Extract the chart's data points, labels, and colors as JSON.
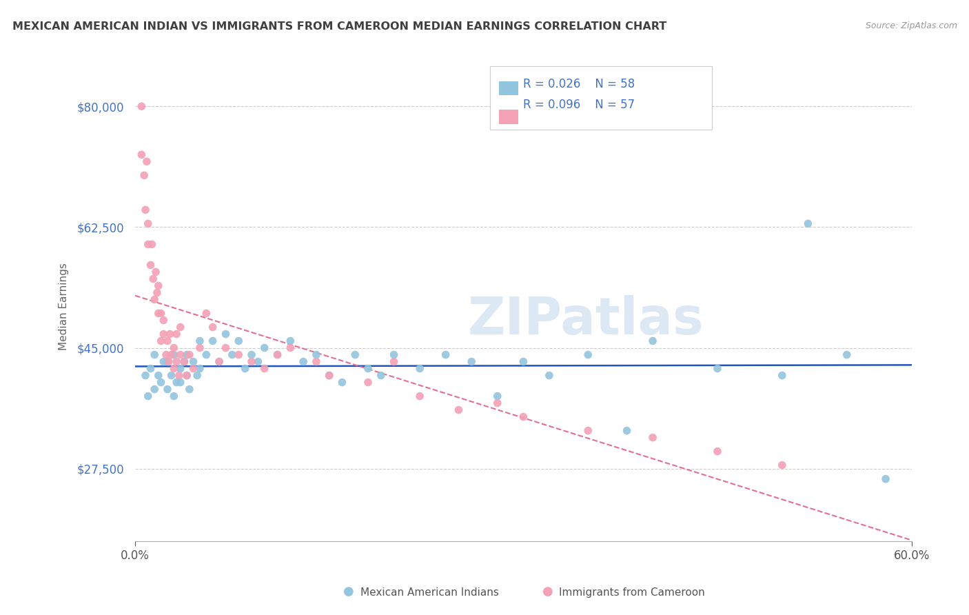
{
  "title": "MEXICAN AMERICAN INDIAN VS IMMIGRANTS FROM CAMEROON MEDIAN EARNINGS CORRELATION CHART",
  "source": "Source: ZipAtlas.com",
  "ylabel": "Median Earnings",
  "xlim": [
    0.0,
    0.6
  ],
  "ylim": [
    17000,
    85000
  ],
  "yticks": [
    27500,
    45000,
    62500,
    80000
  ],
  "ytick_labels": [
    "$27,500",
    "$45,000",
    "$62,500",
    "$80,000"
  ],
  "xtick_labels": [
    "0.0%",
    "60.0%"
  ],
  "legend_blue_r": "R = 0.026",
  "legend_blue_n": "N = 58",
  "legend_pink_r": "R = 0.096",
  "legend_pink_n": "N = 57",
  "legend_label_blue": "Mexican American Indians",
  "legend_label_pink": "Immigrants from Cameroon",
  "blue_color": "#92c5de",
  "pink_color": "#f4a0b5",
  "title_color": "#404040",
  "axis_label_color": "#4472c4",
  "watermark": "ZIPatlas",
  "blue_scatter_x": [
    0.008,
    0.01,
    0.012,
    0.015,
    0.015,
    0.018,
    0.02,
    0.022,
    0.025,
    0.025,
    0.028,
    0.03,
    0.03,
    0.032,
    0.035,
    0.035,
    0.038,
    0.04,
    0.04,
    0.042,
    0.045,
    0.048,
    0.05,
    0.05,
    0.055,
    0.06,
    0.065,
    0.07,
    0.075,
    0.08,
    0.085,
    0.09,
    0.095,
    0.1,
    0.11,
    0.12,
    0.13,
    0.14,
    0.15,
    0.16,
    0.17,
    0.18,
    0.19,
    0.2,
    0.22,
    0.24,
    0.26,
    0.28,
    0.3,
    0.32,
    0.35,
    0.38,
    0.4,
    0.45,
    0.5,
    0.52,
    0.55,
    0.58
  ],
  "blue_scatter_y": [
    41000,
    38000,
    42000,
    39000,
    44000,
    41000,
    40000,
    43000,
    39000,
    43000,
    41000,
    38000,
    44000,
    40000,
    42000,
    40000,
    43000,
    41000,
    44000,
    39000,
    43000,
    41000,
    46000,
    42000,
    44000,
    46000,
    43000,
    47000,
    44000,
    46000,
    42000,
    44000,
    43000,
    45000,
    44000,
    46000,
    43000,
    44000,
    41000,
    40000,
    44000,
    42000,
    41000,
    44000,
    42000,
    44000,
    43000,
    38000,
    43000,
    41000,
    44000,
    33000,
    46000,
    42000,
    41000,
    63000,
    44000,
    26000
  ],
  "pink_scatter_x": [
    0.005,
    0.005,
    0.007,
    0.008,
    0.009,
    0.01,
    0.01,
    0.012,
    0.013,
    0.014,
    0.015,
    0.016,
    0.017,
    0.018,
    0.018,
    0.02,
    0.02,
    0.022,
    0.022,
    0.024,
    0.025,
    0.026,
    0.027,
    0.028,
    0.03,
    0.03,
    0.032,
    0.032,
    0.034,
    0.035,
    0.035,
    0.038,
    0.04,
    0.042,
    0.045,
    0.05,
    0.055,
    0.06,
    0.065,
    0.07,
    0.08,
    0.09,
    0.1,
    0.11,
    0.12,
    0.14,
    0.15,
    0.18,
    0.2,
    0.22,
    0.25,
    0.28,
    0.3,
    0.35,
    0.4,
    0.45,
    0.5
  ],
  "pink_scatter_y": [
    80000,
    73000,
    70000,
    65000,
    72000,
    60000,
    63000,
    57000,
    60000,
    55000,
    52000,
    56000,
    53000,
    50000,
    54000,
    46000,
    50000,
    47000,
    49000,
    44000,
    46000,
    43000,
    47000,
    44000,
    42000,
    45000,
    43000,
    47000,
    41000,
    44000,
    48000,
    43000,
    41000,
    44000,
    42000,
    45000,
    50000,
    48000,
    43000,
    45000,
    44000,
    43000,
    42000,
    44000,
    45000,
    43000,
    41000,
    40000,
    43000,
    38000,
    36000,
    37000,
    35000,
    33000,
    32000,
    30000,
    28000
  ]
}
